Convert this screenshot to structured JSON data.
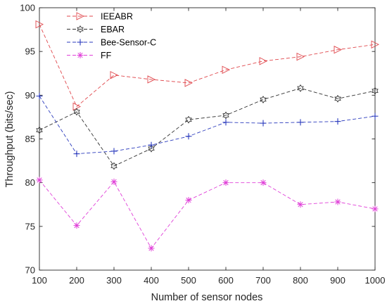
{
  "chart_data": {
    "type": "line",
    "title": "",
    "xlabel": "Number of sensor nodes",
    "ylabel": "Throughput (bits/sec)",
    "x": [
      100,
      200,
      300,
      400,
      500,
      600,
      700,
      800,
      900,
      1000
    ],
    "xlim": [
      100,
      1000
    ],
    "ylim": [
      70,
      100
    ],
    "xticks": [
      "100",
      "200",
      "300",
      "400",
      "500",
      "600",
      "700",
      "800",
      "900",
      "1000"
    ],
    "yticks": [
      "70",
      "75",
      "80",
      "85",
      "90",
      "95",
      "100"
    ],
    "grid": false,
    "legend_position": "top-left",
    "series": [
      {
        "name": "IEEABR",
        "color": "#e0474c",
        "marker": "triangle-right",
        "line_style": "dashed",
        "values": [
          98.1,
          88.7,
          92.3,
          91.8,
          91.4,
          92.9,
          93.9,
          94.4,
          95.2,
          95.8
        ]
      },
      {
        "name": "EBAR",
        "color": "#333333",
        "marker": "hexagram",
        "line_style": "dashed",
        "values": [
          86.0,
          88.1,
          81.9,
          83.9,
          87.2,
          87.7,
          89.5,
          90.8,
          89.6,
          90.5
        ]
      },
      {
        "name": "Bee-Sensor-C",
        "color": "#2b3bbd",
        "marker": "plus",
        "line_style": "dashed",
        "values": [
          89.9,
          83.3,
          83.6,
          84.3,
          85.3,
          86.9,
          86.8,
          86.9,
          87.0,
          87.6
        ]
      },
      {
        "name": "FF",
        "color": "#e040d8",
        "marker": "asterisk",
        "line_style": "dashed",
        "values": [
          80.3,
          75.1,
          80.1,
          72.5,
          78.0,
          80.0,
          80.0,
          77.5,
          77.8,
          77.0
        ]
      }
    ]
  }
}
